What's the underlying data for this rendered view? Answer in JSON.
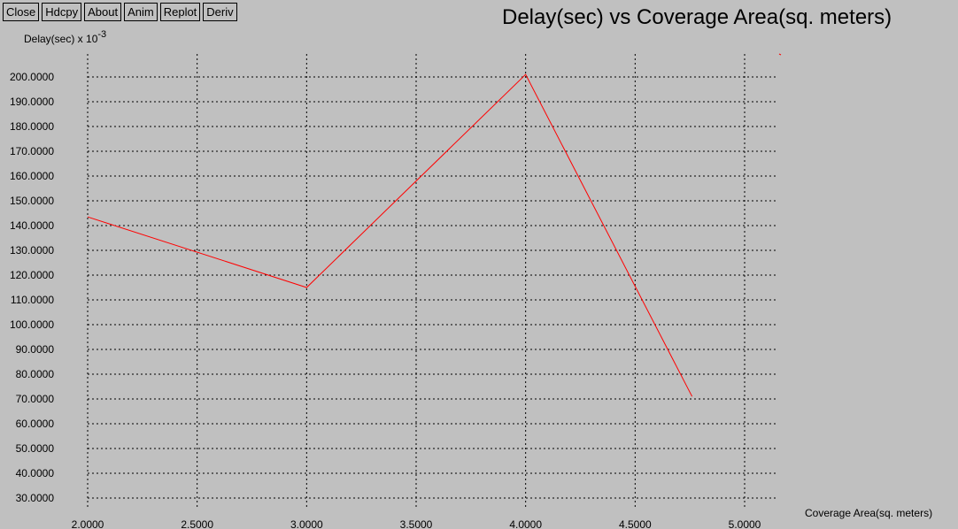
{
  "toolbar": {
    "buttons": [
      "Close",
      "Hdcpy",
      "About",
      "Anim",
      "Replot",
      "Deriv"
    ]
  },
  "colors": {
    "background": "#c0c0c0",
    "series": "#ff0000",
    "grid": "#000000"
  },
  "chart_data": {
    "type": "line",
    "title": "Delay(sec) vs Coverage Area(sq. meters)",
    "ylabel": "Delay(sec) x 10",
    "ylabel_exponent": "-3",
    "xlabel": "Coverage Area(sq. meters)",
    "xlim": [
      2.0,
      5.15
    ],
    "ylim": [
      25.0,
      207.0
    ],
    "xticks": [
      "2.0000",
      "2.5000",
      "3.0000",
      "3.5000",
      "4.0000",
      "4.5000",
      "5.0000"
    ],
    "yticks": [
      "30.0000",
      "40.0000",
      "50.0000",
      "60.0000",
      "70.0000",
      "80.0000",
      "90.0000",
      "100.0000",
      "110.0000",
      "120.0000",
      "130.0000",
      "140.0000",
      "150.0000",
      "160.0000",
      "170.0000",
      "180.0000",
      "190.0000",
      "200.0000"
    ],
    "grid": true,
    "series": [
      {
        "x": [
          2.0,
          3.0,
          4.0,
          4.76
        ],
        "y": [
          143.5,
          115.0,
          201.0,
          71.0
        ]
      }
    ]
  }
}
